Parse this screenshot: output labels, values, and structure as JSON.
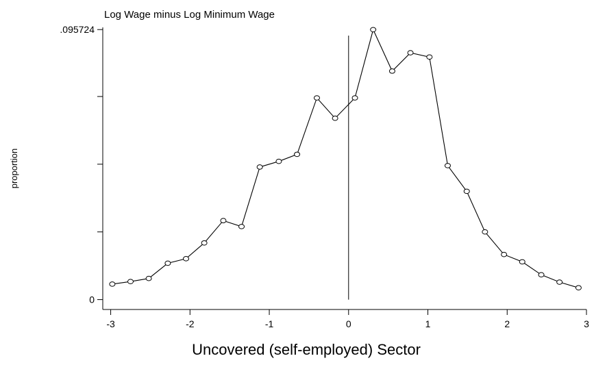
{
  "chart_data": {
    "type": "line",
    "title": "Log Wage minus Log Minimum Wage",
    "xlabel": "Uncovered (self-employed) Sector",
    "ylabel": "proportion",
    "xlim": [
      -3.1,
      3.0
    ],
    "ylim": [
      -0.0035,
      0.0965
    ],
    "x_ticks": [
      -3,
      -2,
      -1,
      0,
      1,
      2,
      3
    ],
    "x_tick_labels": [
      "-3",
      "-2",
      "-1",
      "0",
      "1",
      "2",
      "3"
    ],
    "y_ticks": [
      0,
      0.024,
      0.048,
      0.072,
      0.095724
    ],
    "y_tick_labels": [
      "0",
      "",
      "",
      "",
      ".095724"
    ],
    "reference_line_x": 0,
    "grid": false,
    "marker": "hollow-circle",
    "series": [
      {
        "x": [
          -2.98,
          -2.75,
          -2.52,
          -2.28,
          -2.05,
          -1.82,
          -1.58,
          -1.35,
          -1.12,
          -0.88,
          -0.65,
          -0.4,
          -0.17,
          0.08,
          0.31,
          0.55,
          0.78,
          1.02,
          1.25,
          1.49,
          1.72,
          1.96,
          2.19,
          2.43,
          2.66,
          2.9
        ],
        "values": [
          0.0055,
          0.0064,
          0.0075,
          0.0129,
          0.0145,
          0.0201,
          0.028,
          0.0259,
          0.047,
          0.049,
          0.0515,
          0.0715,
          0.0643,
          0.0715,
          0.0957,
          0.081,
          0.0875,
          0.086,
          0.0475,
          0.0384,
          0.024,
          0.016,
          0.0134,
          0.0088,
          0.0062,
          0.0042
        ]
      }
    ]
  }
}
